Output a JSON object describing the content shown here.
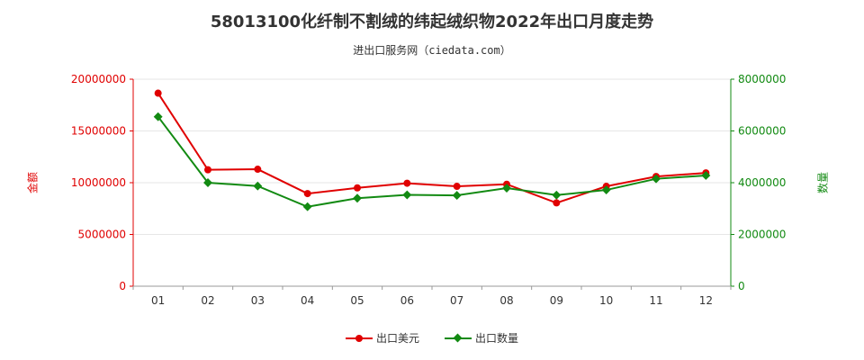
{
  "title": "58013100化纤制不割绒的纬起绒织物2022年出口月度走势",
  "subtitle": "进出口服务网（ciedata.com）",
  "colors": {
    "left_axis": "#e00000",
    "right_axis": "#128a12",
    "grid": "#e6e6e6"
  },
  "chart_data": {
    "type": "line",
    "categories": [
      "01",
      "02",
      "03",
      "04",
      "05",
      "06",
      "07",
      "08",
      "09",
      "10",
      "11",
      "12"
    ],
    "left_axis": {
      "label": "金额",
      "ylim": [
        0,
        20000000
      ],
      "ticks": [
        "0",
        "5000000",
        "10000000",
        "15000000",
        "20000000"
      ]
    },
    "right_axis": {
      "label": "数量",
      "ylim": [
        0,
        8000000
      ],
      "ticks": [
        "0",
        "2000000",
        "4000000",
        "6000000",
        "8000000"
      ]
    },
    "series": [
      {
        "name": "出口美元",
        "axis": "left",
        "color": "#e00000",
        "marker": "circle",
        "values": [
          18650000,
          11250000,
          11300000,
          8950000,
          9500000,
          9950000,
          9650000,
          9850000,
          8050000,
          9650000,
          10600000,
          10950000
        ]
      },
      {
        "name": "出口数量",
        "axis": "right",
        "color": "#128a12",
        "marker": "diamond",
        "values": [
          6550000,
          4000000,
          3870000,
          3070000,
          3400000,
          3530000,
          3510000,
          3790000,
          3520000,
          3720000,
          4150000,
          4280000
        ]
      }
    ],
    "grid": true,
    "legend": "bottom-center"
  }
}
